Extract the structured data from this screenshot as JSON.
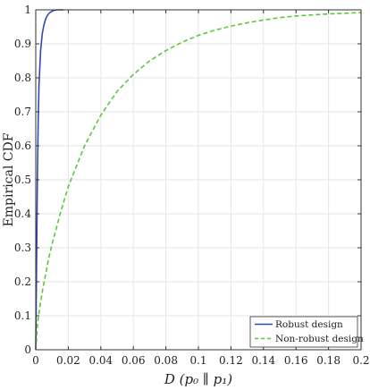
{
  "chart_data": {
    "type": "line",
    "title": "",
    "xlabel": "D (p₀ ∥ p₁)",
    "ylabel": "Empirical CDF",
    "xlim": [
      0,
      0.2
    ],
    "ylim": [
      0,
      1
    ],
    "x_ticks": [
      "0",
      "0.02",
      "0.04",
      "0.06",
      "0.08",
      "0.1",
      "0.12",
      "0.14",
      "0.16",
      "0.18",
      "0.2"
    ],
    "y_ticks": [
      "0",
      "0.1",
      "0.2",
      "0.3",
      "0.4",
      "0.5",
      "0.6",
      "0.7",
      "0.8",
      "0.9",
      "1"
    ],
    "grid": true,
    "legend_position": "bottom-right",
    "series": [
      {
        "name": "Robust design",
        "color": "#2f4bb0",
        "style": "solid",
        "x": [
          0,
          0.0005,
          0.001,
          0.0015,
          0.002,
          0.003,
          0.004,
          0.005,
          0.006,
          0.007,
          0.008,
          0.009,
          0.01,
          0.011,
          0.012,
          0.013,
          0.014,
          0.015,
          0.016,
          0.017
        ],
        "y": [
          0,
          0.25,
          0.5,
          0.67,
          0.78,
          0.88,
          0.93,
          0.955,
          0.972,
          0.982,
          0.989,
          0.993,
          0.996,
          0.998,
          0.999,
          1.0,
          1.0,
          1.0,
          1.0,
          1.0
        ]
      },
      {
        "name": "Non-robust design",
        "color": "#5cc83a",
        "style": "dashed",
        "x": [
          0,
          0.001,
          0.002,
          0.004,
          0.006,
          0.008,
          0.01,
          0.015,
          0.02,
          0.03,
          0.04,
          0.05,
          0.06,
          0.07,
          0.08,
          0.09,
          0.1,
          0.11,
          0.12,
          0.13,
          0.14,
          0.15,
          0.16,
          0.17,
          0.18,
          0.19,
          0.2
        ],
        "y": [
          0,
          0.07,
          0.11,
          0.17,
          0.22,
          0.27,
          0.31,
          0.4,
          0.48,
          0.6,
          0.69,
          0.76,
          0.81,
          0.85,
          0.88,
          0.905,
          0.925,
          0.94,
          0.952,
          0.962,
          0.97,
          0.977,
          0.982,
          0.985,
          0.988,
          0.99,
          0.992
        ]
      }
    ]
  }
}
